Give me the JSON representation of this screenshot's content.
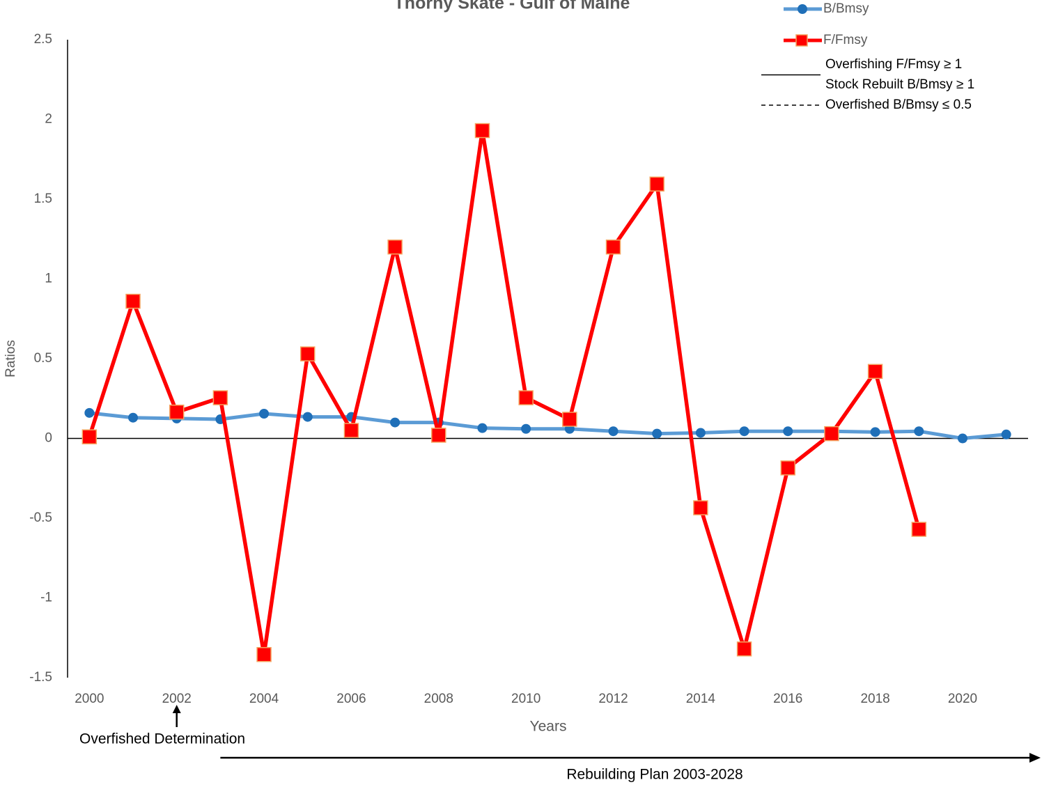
{
  "chart_data": {
    "type": "line",
    "title": "Thorny Skate - Gulf of Maine",
    "y_label": "Ratios",
    "x_label": "Years",
    "x": [
      2000,
      2001,
      2002,
      2003,
      2004,
      2005,
      2006,
      2007,
      2008,
      2009,
      2010,
      2011,
      2012,
      2013,
      2014,
      2015,
      2016,
      2017,
      2018,
      2019,
      2020,
      2021
    ],
    "series": [
      {
        "name": "B/Bmsy",
        "color": "#5b9bd5",
        "marker": "circle",
        "marker_color": "#1f6fb8",
        "values": [
          0.16,
          0.13,
          0.125,
          0.12,
          0.155,
          0.135,
          0.135,
          0.1,
          0.1,
          0.065,
          0.06,
          0.06,
          0.045,
          0.03,
          0.035,
          0.045,
          0.045,
          0.045,
          0.04,
          0.045,
          0.0,
          0.025
        ]
      },
      {
        "name": "F/Fmsy",
        "color": "#ff0000",
        "marker": "square",
        "marker_color": "#ff0000",
        "values": [
          0.01,
          0.86,
          0.165,
          0.255,
          -1.355,
          0.53,
          0.05,
          1.2,
          0.02,
          1.93,
          0.255,
          0.12,
          1.2,
          1.595,
          -0.435,
          -1.32,
          -0.185,
          0.03,
          0.42,
          -0.57,
          null,
          null
        ]
      }
    ],
    "xlim": [
      1999.5,
      2021.5
    ],
    "xticks": [
      2000,
      2002,
      2004,
      2006,
      2008,
      2010,
      2012,
      2014,
      2016,
      2018,
      2020
    ],
    "ylim": [
      -1.5,
      2.5
    ],
    "yticks": [
      -1.5,
      -1,
      -0.5,
      0,
      0.5,
      1,
      1.5,
      2,
      2.5
    ],
    "grid": false,
    "legend": "top-right",
    "reference_legend": [
      {
        "labels": [
          "Overfishing F/Fmsy ≥ 1",
          "Stock Rebuilt B/Bmsy ≥ 1"
        ],
        "dash": "solid"
      },
      {
        "labels": [
          "Overfished B/Bmsy ≤ 0.5"
        ],
        "dash": "dashed"
      }
    ],
    "annotations": [
      {
        "text": "Overfished Determination",
        "x": 2002,
        "arrow": "up"
      },
      {
        "text": "Rebuilding Plan 2003-2028",
        "x": 2003,
        "arrow": "right"
      }
    ]
  }
}
